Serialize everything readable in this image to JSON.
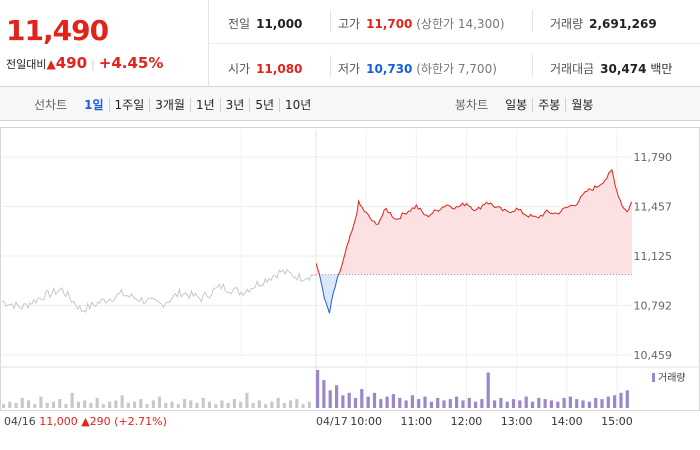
{
  "summary": {
    "price": "11,490",
    "change_label": "전일대비",
    "change_arrow": "▲",
    "change_value": "490",
    "change_pct": "+4.45%"
  },
  "stats": {
    "prev_close_label": "전일",
    "prev_close": "11,000",
    "high_label": "고가",
    "high": "11,700",
    "upper_limit": "(상한가 14,300)",
    "volume_label": "거래량",
    "volume": "2,691,269",
    "open_label": "시가",
    "open": "11,080",
    "low_label": "저가",
    "low": "10,730",
    "lower_limit": "(하한가 7,700)",
    "amount_label": "거래대금",
    "amount": "30,474",
    "amount_unit": "백만"
  },
  "tabs": {
    "line_label": "선차트",
    "line_items": [
      "1일",
      "1주일",
      "3개월",
      "1년",
      "3년",
      "5년",
      "10년"
    ],
    "active_line": 0,
    "candle_label": "봉차트",
    "candle_items": [
      "일봉",
      "주봉",
      "월봉"
    ]
  },
  "colors": {
    "up": "#e2231a",
    "down": "#1a5fd6",
    "prev_day": "#c8c8c8",
    "volume": "#9b88cc"
  },
  "chart_data": {
    "type": "line",
    "y_ticks": [
      "11,790",
      "11,457",
      "11,125",
      "10,792",
      "10,459"
    ],
    "ylim": [
      10459,
      11790
    ],
    "base_price": 11000,
    "volume_legend": "거래량",
    "prev_day_label": "04/16",
    "prev_day_close": "11,000",
    "prev_day_arrow": "▲",
    "prev_day_change": "290",
    "prev_day_pct": "(+2.71%)",
    "today_label": "04/17",
    "time_ticks": [
      "10:00",
      "11:00",
      "12:00",
      "13:00",
      "14:00",
      "15:00"
    ],
    "prev_day_series": [
      [
        9.0,
        10820
      ],
      [
        9.4,
        10780
      ],
      [
        9.8,
        10850
      ],
      [
        10.2,
        10900
      ],
      [
        10.6,
        10760
      ],
      [
        11.0,
        10820
      ],
      [
        11.4,
        10870
      ],
      [
        11.8,
        10830
      ],
      [
        12.2,
        10800
      ],
      [
        12.6,
        10880
      ],
      [
        13.0,
        10840
      ],
      [
        13.4,
        10920
      ],
      [
        13.8,
        10880
      ],
      [
        14.2,
        10950
      ],
      [
        14.6,
        11020
      ],
      [
        15.0,
        10980
      ],
      [
        15.3,
        11000
      ]
    ],
    "today_series": [
      [
        9.0,
        11080
      ],
      [
        9.1,
        10950
      ],
      [
        9.2,
        10800
      ],
      [
        9.27,
        10740
      ],
      [
        9.35,
        10880
      ],
      [
        9.45,
        10990
      ],
      [
        9.55,
        11100
      ],
      [
        9.65,
        11220
      ],
      [
        9.75,
        11320
      ],
      [
        9.85,
        11480
      ],
      [
        10.0,
        11410
      ],
      [
        10.2,
        11330
      ],
      [
        10.4,
        11440
      ],
      [
        10.6,
        11370
      ],
      [
        10.8,
        11420
      ],
      [
        11.0,
        11460
      ],
      [
        11.2,
        11390
      ],
      [
        11.4,
        11430
      ],
      [
        11.6,
        11470
      ],
      [
        11.8,
        11450
      ],
      [
        12.0,
        11480
      ],
      [
        12.2,
        11430
      ],
      [
        12.4,
        11490
      ],
      [
        12.6,
        11450
      ],
      [
        12.8,
        11420
      ],
      [
        13.0,
        11440
      ],
      [
        13.2,
        11400
      ],
      [
        13.4,
        11380
      ],
      [
        13.6,
        11420
      ],
      [
        13.8,
        11410
      ],
      [
        14.0,
        11450
      ],
      [
        14.2,
        11480
      ],
      [
        14.4,
        11560
      ],
      [
        14.6,
        11590
      ],
      [
        14.8,
        11650
      ],
      [
        14.9,
        11700
      ],
      [
        15.0,
        11560
      ],
      [
        15.1,
        11470
      ],
      [
        15.2,
        11420
      ],
      [
        15.3,
        11490
      ]
    ],
    "prev_day_volume": [
      3,
      5,
      4,
      8,
      6,
      3,
      9,
      4,
      5,
      7,
      3,
      12,
      5,
      6,
      4,
      8,
      3,
      5,
      6,
      10,
      4,
      5,
      7,
      3,
      6,
      9,
      4,
      5,
      3,
      7,
      6,
      4,
      8,
      5,
      3,
      6,
      4,
      7,
      5,
      12,
      4,
      6,
      3,
      5,
      8,
      4,
      6,
      7,
      3,
      5
    ],
    "today_volume": [
      30,
      22,
      14,
      18,
      10,
      12,
      8,
      15,
      9,
      12,
      7,
      9,
      11,
      8,
      6,
      10,
      7,
      9,
      5,
      8,
      6,
      7,
      9,
      6,
      8,
      5,
      7,
      28,
      6,
      8,
      5,
      7,
      6,
      9,
      5,
      8,
      7,
      6,
      5,
      8,
      9,
      7,
      6,
      5,
      8,
      7,
      9,
      10,
      12,
      14
    ]
  }
}
